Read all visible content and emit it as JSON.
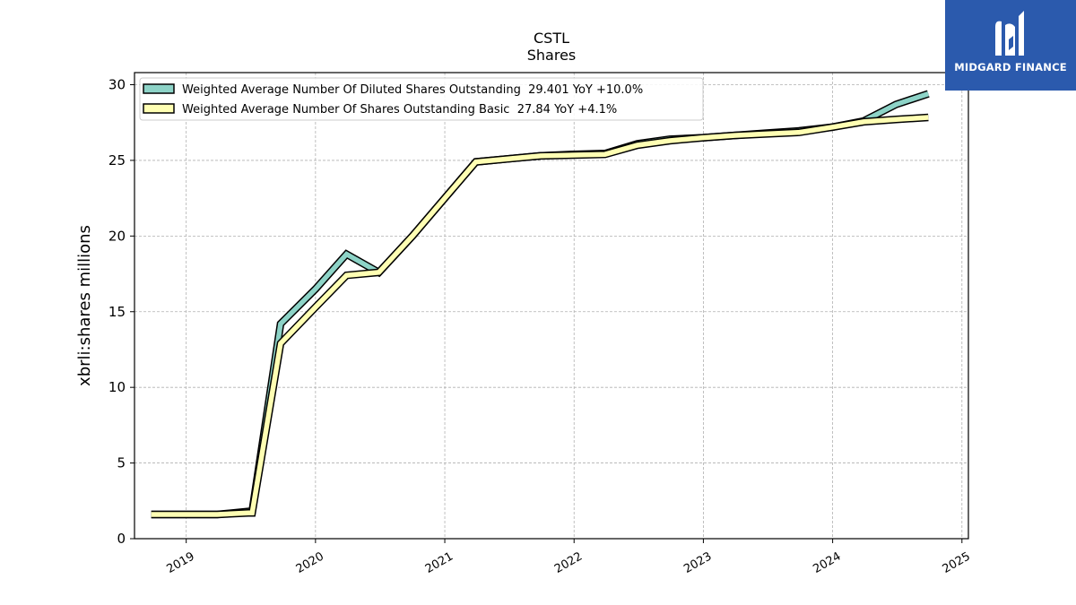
{
  "chart_data": {
    "type": "line",
    "title": "CSTL",
    "subtitle": "Shares",
    "ylabel": "xbrli:shares millions",
    "xlabel": "",
    "xlim": [
      2018.6,
      2025.05
    ],
    "ylim": [
      0,
      30.8
    ],
    "yticks": [
      0,
      5,
      10,
      15,
      20,
      25,
      30
    ],
    "xticks": [
      2019,
      2020,
      2021,
      2022,
      2023,
      2024,
      2025
    ],
    "grid": true,
    "legend_position": "top-left",
    "series": [
      {
        "name": "Weighted Average Number Of Diluted Shares Outstanding  29.401 YoY +10.0%",
        "color": "#8dd3c7",
        "x": [
          2018.73,
          2018.98,
          2019.24,
          2019.48,
          2019.51,
          2019.73,
          2020.0,
          2020.24,
          2020.49,
          2020.75,
          2021.0,
          2021.24,
          2021.49,
          2021.74,
          2022.0,
          2022.24,
          2022.49,
          2022.74,
          2023.0,
          2023.24,
          2023.49,
          2023.74,
          2024.0,
          2024.24,
          2024.49,
          2024.74
        ],
        "y": [
          1.6,
          1.6,
          1.6,
          1.8,
          1.8,
          14.2,
          16.5,
          18.8,
          17.6,
          20.0,
          22.5,
          24.9,
          25.1,
          25.3,
          25.4,
          25.45,
          26.1,
          26.4,
          26.5,
          26.65,
          26.8,
          26.95,
          27.2,
          27.6,
          28.7,
          29.4
        ]
      },
      {
        "name": "Weighted Average Number Of Shares Outstanding Basic  27.84 YoY +4.1%",
        "color": "#ffffb3",
        "x": [
          2018.73,
          2018.98,
          2019.24,
          2019.48,
          2019.51,
          2019.73,
          2020.0,
          2020.24,
          2020.49,
          2020.75,
          2021.0,
          2021.24,
          2021.49,
          2021.74,
          2022.0,
          2022.24,
          2022.49,
          2022.74,
          2023.0,
          2023.24,
          2023.49,
          2023.74,
          2024.0,
          2024.24,
          2024.49,
          2024.74
        ],
        "y": [
          1.6,
          1.6,
          1.6,
          1.7,
          1.7,
          12.9,
          15.3,
          17.4,
          17.6,
          20.0,
          22.5,
          24.9,
          25.1,
          25.3,
          25.35,
          25.4,
          26.0,
          26.3,
          26.5,
          26.65,
          26.75,
          26.85,
          27.2,
          27.55,
          27.7,
          27.84
        ]
      }
    ]
  },
  "logo": {
    "text": "MIDGARD FINANCE"
  }
}
